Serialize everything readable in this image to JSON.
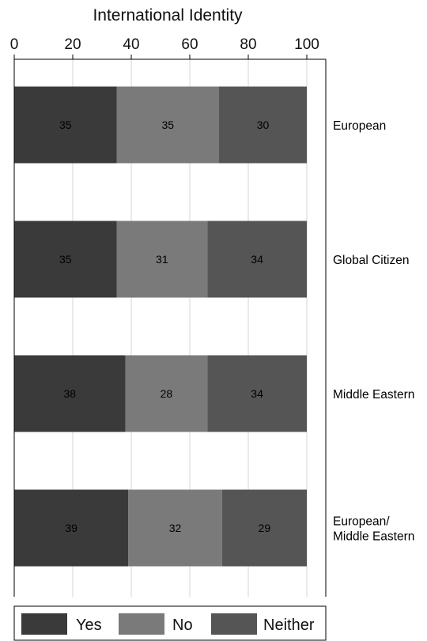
{
  "chart_data": {
    "type": "bar",
    "orientation": "horizontal",
    "stacked": true,
    "title": "International Identity",
    "xlabel": "",
    "ylabel": "",
    "xlim": [
      0,
      100
    ],
    "xticks": [
      0,
      20,
      40,
      60,
      80,
      100
    ],
    "grid": true,
    "legend_position": "bottom",
    "categories": [
      "European",
      "Global Citizen",
      "Middle Eastern",
      "European/\nMiddle Eastern"
    ],
    "series": [
      {
        "name": "Yes",
        "color": "#3a3a3a",
        "values": [
          35,
          35,
          38,
          39
        ]
      },
      {
        "name": "No",
        "color": "#7a7a7a",
        "values": [
          35,
          31,
          28,
          32
        ]
      },
      {
        "name": "Neither",
        "color": "#555555",
        "values": [
          30,
          34,
          34,
          29
        ]
      }
    ]
  }
}
